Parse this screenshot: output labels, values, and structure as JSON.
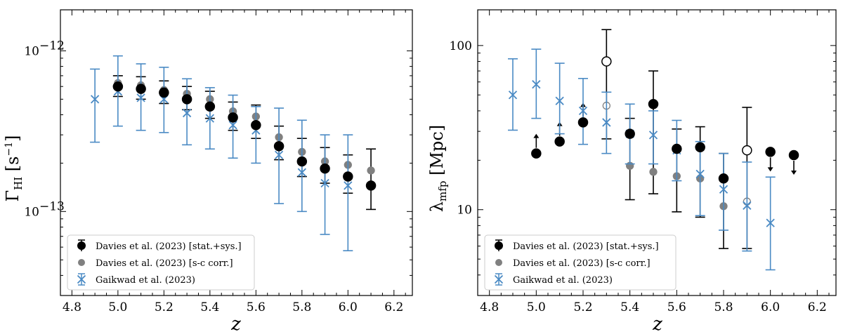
{
  "chart_data": [
    {
      "type": "scatter",
      "yscale": "log",
      "xlabel": "z",
      "ylabel_main": "Γ",
      "ylabel_sub": "HI",
      "ylabel_unit": "[s",
      "ylabel_unit_exp": "−1",
      "ylabel_unit_close": "]",
      "xlim": [
        4.75,
        6.28
      ],
      "ylim": [
        3e-14,
        1.8e-12
      ],
      "xticks": [
        4.8,
        5.0,
        5.2,
        5.4,
        5.6,
        5.8,
        6.0,
        6.2
      ],
      "xtick_labels": [
        "4.8",
        "5.0",
        "5.2",
        "5.4",
        "5.6",
        "5.8",
        "6.0",
        "6.2"
      ],
      "yticks": [
        1e-13,
        1e-12
      ],
      "ytick_mantissa": [
        "10",
        "10"
      ],
      "ytick_exponent": [
        "−13",
        "−12"
      ],
      "legend_position": "lower-left",
      "series": [
        {
          "name": "Davies et al. (2023) [stat.+sys.]",
          "style": "black-circle-errorbar",
          "color": "#000000",
          "points": [
            {
              "x": 5.0,
              "y": 6e-13,
              "lo": 5.2e-13,
              "hi": 7e-13
            },
            {
              "x": 5.1,
              "y": 5.8e-13,
              "lo": 5e-13,
              "hi": 6.9e-13
            },
            {
              "x": 5.2,
              "y": 5.5e-13,
              "lo": 4.7e-13,
              "hi": 6.5e-13
            },
            {
              "x": 5.3,
              "y": 5e-13,
              "lo": 4.3e-13,
              "hi": 6e-13
            },
            {
              "x": 5.4,
              "y": 4.5e-13,
              "lo": 3.8e-13,
              "hi": 5.6e-13
            },
            {
              "x": 5.5,
              "y": 3.85e-13,
              "lo": 3.2e-13,
              "hi": 4.8e-13
            },
            {
              "x": 5.6,
              "y": 3.45e-13,
              "lo": 2.85e-13,
              "hi": 4.6e-13
            },
            {
              "x": 5.7,
              "y": 2.55e-13,
              "lo": 2.1e-13,
              "hi": 3.4e-13
            },
            {
              "x": 5.8,
              "y": 2.05e-13,
              "lo": 1.65e-13,
              "hi": 2.85e-13
            },
            {
              "x": 5.9,
              "y": 1.85e-13,
              "lo": 1.5e-13,
              "hi": 2.5e-13
            },
            {
              "x": 6.0,
              "y": 1.65e-13,
              "lo": 1.3e-13,
              "hi": 2.25e-13
            },
            {
              "x": 6.1,
              "y": 1.45e-13,
              "lo": 1.03e-13,
              "hi": 2.45e-13
            }
          ]
        },
        {
          "name": "Davies et al. (2023) [s-c corr.]",
          "style": "grey-circle",
          "color": "#808080",
          "points": [
            {
              "x": 5.0,
              "y": 6.3e-13
            },
            {
              "x": 5.1,
              "y": 6.1e-13
            },
            {
              "x": 5.2,
              "y": 5.7e-13
            },
            {
              "x": 5.3,
              "y": 5.4e-13
            },
            {
              "x": 5.4,
              "y": 5e-13
            },
            {
              "x": 5.5,
              "y": 4.2e-13
            },
            {
              "x": 5.6,
              "y": 3.9e-13
            },
            {
              "x": 5.7,
              "y": 2.9e-13
            },
            {
              "x": 5.8,
              "y": 2.35e-13
            },
            {
              "x": 5.9,
              "y": 2.05e-13
            },
            {
              "x": 6.0,
              "y": 1.95e-13
            },
            {
              "x": 6.1,
              "y": 1.8e-13
            }
          ]
        },
        {
          "name": "Gaikwad et al. (2023)",
          "style": "blue-x-errorbar",
          "color": "#4a8ac4",
          "points": [
            {
              "x": 4.9,
              "y": 5e-13,
              "lo": 2.7e-13,
              "hi": 7.7e-13
            },
            {
              "x": 5.0,
              "y": 5.6e-13,
              "lo": 3.4e-13,
              "hi": 9.3e-13
            },
            {
              "x": 5.1,
              "y": 5.1e-13,
              "lo": 3.2e-13,
              "hi": 8.3e-13
            },
            {
              "x": 5.2,
              "y": 5e-13,
              "lo": 3.1e-13,
              "hi": 7.9e-13
            },
            {
              "x": 5.3,
              "y": 4.1e-13,
              "lo": 2.6e-13,
              "hi": 6.7e-13
            },
            {
              "x": 5.4,
              "y": 3.8e-13,
              "lo": 2.45e-13,
              "hi": 5.9e-13
            },
            {
              "x": 5.5,
              "y": 3.45e-13,
              "lo": 2.15e-13,
              "hi": 5.3e-13
            },
            {
              "x": 5.6,
              "y": 3.2e-13,
              "lo": 2e-13,
              "hi": 4.5e-13
            },
            {
              "x": 5.7,
              "y": 2.25e-13,
              "lo": 1.12e-13,
              "hi": 4.4e-13
            },
            {
              "x": 5.8,
              "y": 1.75e-13,
              "lo": 1e-13,
              "hi": 3.7e-13
            },
            {
              "x": 5.9,
              "y": 1.5e-13,
              "lo": 7.2e-14,
              "hi": 3e-13
            },
            {
              "x": 6.0,
              "y": 1.45e-13,
              "lo": 5.7e-14,
              "hi": 3e-13
            }
          ]
        }
      ]
    },
    {
      "type": "scatter",
      "yscale": "log",
      "xlabel": "z",
      "ylabel_main": "λ",
      "ylabel_sub": "mfp",
      "ylabel_unit": "[Mpc]",
      "xlim": [
        4.75,
        6.28
      ],
      "ylim": [
        3.0,
        165
      ],
      "xticks": [
        4.8,
        5.0,
        5.2,
        5.4,
        5.6,
        5.8,
        6.0,
        6.2
      ],
      "xtick_labels": [
        "4.8",
        "5.0",
        "5.2",
        "5.4",
        "5.6",
        "5.8",
        "6.0",
        "6.2"
      ],
      "yticks": [
        10,
        100
      ],
      "ytick_labels": [
        "10",
        "100"
      ],
      "legend_position": "lower-left",
      "series": [
        {
          "name": "Davies et al. (2023) [stat.+sys.]",
          "style": "black-circle-errorbar",
          "color": "#000000",
          "points": [
            {
              "x": 5.0,
              "y": 22,
              "limit": "lower"
            },
            {
              "x": 5.1,
              "y": 26,
              "limit": "lower"
            },
            {
              "x": 5.2,
              "y": 34,
              "limit": "lower"
            },
            {
              "x": 5.3,
              "y": 80,
              "lo": 27,
              "hi": 125,
              "open": true
            },
            {
              "x": 5.4,
              "y": 29,
              "lo": 11.5,
              "hi": 36
            },
            {
              "x": 5.5,
              "y": 44,
              "lo": 12.5,
              "hi": 70
            },
            {
              "x": 5.6,
              "y": 23.5,
              "lo": 9.7,
              "hi": 31
            },
            {
              "x": 5.7,
              "y": 24,
              "lo": 9.0,
              "hi": 32
            },
            {
              "x": 5.8,
              "y": 15.5,
              "lo": 5.8,
              "hi": 22
            },
            {
              "x": 5.9,
              "y": 23,
              "lo": 5.8,
              "hi": 42,
              "open": true
            },
            {
              "x": 6.0,
              "y": 22.5,
              "limit": "upper"
            },
            {
              "x": 6.1,
              "y": 21.5,
              "limit": "upper"
            }
          ]
        },
        {
          "name": "Davies et al. (2023) [s-c corr.]",
          "style": "grey-circle",
          "color": "#808080",
          "points": [
            {
              "x": 5.3,
              "y": 43,
              "open": true
            },
            {
              "x": 5.4,
              "y": 18.5
            },
            {
              "x": 5.5,
              "y": 17
            },
            {
              "x": 5.6,
              "y": 16
            },
            {
              "x": 5.7,
              "y": 15.5
            },
            {
              "x": 5.8,
              "y": 10.5
            },
            {
              "x": 5.9,
              "y": 11.2,
              "open": true
            }
          ]
        },
        {
          "name": "Gaikwad et al. (2023)",
          "style": "blue-x-errorbar",
          "color": "#4a8ac4",
          "points": [
            {
              "x": 4.9,
              "y": 50,
              "lo": 30.5,
              "hi": 83
            },
            {
              "x": 5.0,
              "y": 58,
              "lo": 36,
              "hi": 95
            },
            {
              "x": 5.1,
              "y": 46,
              "lo": 29,
              "hi": 78
            },
            {
              "x": 5.2,
              "y": 40,
              "lo": 25,
              "hi": 63
            },
            {
              "x": 5.3,
              "y": 34,
              "lo": 22,
              "hi": 52
            },
            {
              "x": 5.4,
              "y": 29,
              "lo": 19,
              "hi": 44
            },
            {
              "x": 5.5,
              "y": 28.5,
              "lo": 19,
              "hi": 40
            },
            {
              "x": 5.6,
              "y": 23,
              "lo": 15,
              "hi": 35
            },
            {
              "x": 5.7,
              "y": 16.5,
              "lo": 9.2,
              "hi": 26
            },
            {
              "x": 5.8,
              "y": 13.3,
              "lo": 7.5,
              "hi": 22
            },
            {
              "x": 5.9,
              "y": 10.6,
              "lo": 5.6,
              "hi": 19.5
            },
            {
              "x": 6.0,
              "y": 8.3,
              "lo": 4.3,
              "hi": 15.8
            }
          ]
        }
      ]
    }
  ]
}
